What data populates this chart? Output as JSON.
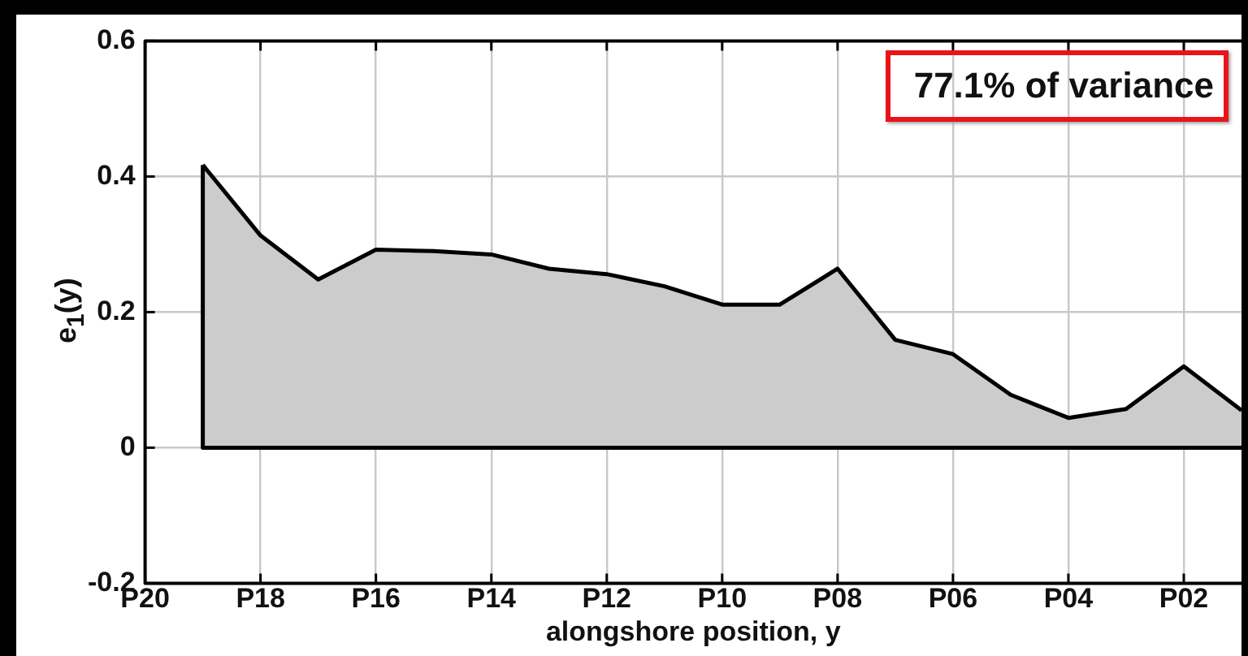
{
  "chart_data": {
    "type": "area",
    "xlabel": "alongshore position, y",
    "ylabel": "e$_{1}$(y)",
    "annotations": [
      "77.1% of variance"
    ],
    "categories": [
      "P20",
      null,
      "P18",
      null,
      "P16",
      null,
      "P14",
      null,
      "P12",
      null,
      "P10",
      null,
      "P08",
      null,
      "P06",
      null,
      "P04",
      null,
      "P02",
      null
    ],
    "series": [
      {
        "color": "#cccccc",
        "values": [
          null,
          0.417,
          0.313,
          0.248,
          0.292,
          0.29,
          0.285,
          0.264,
          0.256,
          0.238,
          0.211,
          0.211,
          0.264,
          0.159,
          0.138,
          0.078,
          0.044,
          0.057,
          0.12,
          0.055
        ]
      }
    ],
    "ylim": [
      -0.2,
      0.6
    ],
    "yticks": [
      -0.2,
      0,
      0.2,
      0.4,
      0.6
    ],
    "grid": true,
    "legend": false,
    "marker": "none",
    "line_style": "solid"
  }
}
